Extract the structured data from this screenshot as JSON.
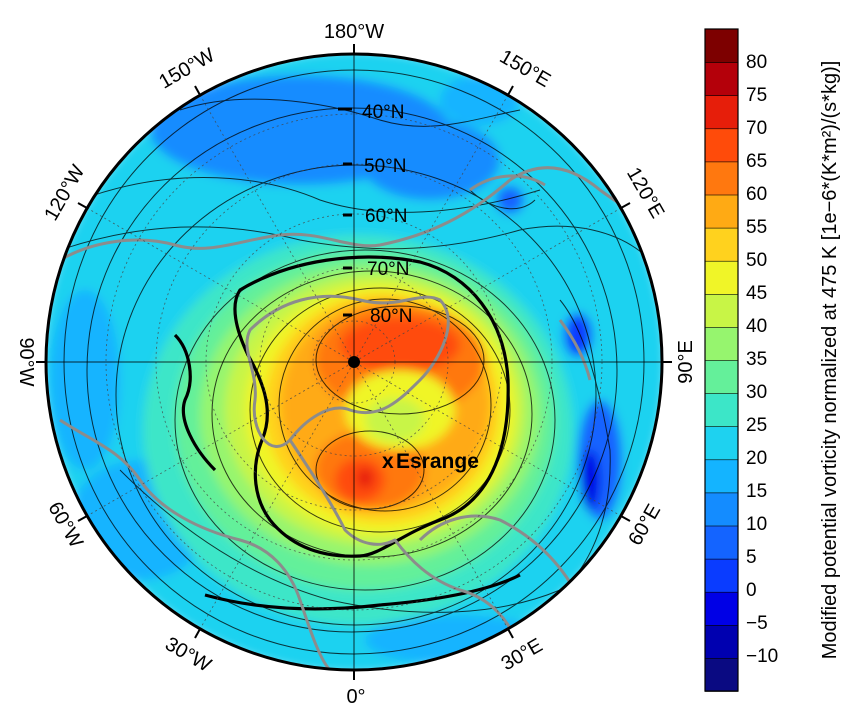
{
  "map": {
    "projection": "north-polar-stereographic",
    "longitude_labels": [
      {
        "id": "lon-180w",
        "text": "180°W"
      },
      {
        "id": "lon-150w",
        "text": "150°W"
      },
      {
        "id": "lon-150e",
        "text": "150°E"
      },
      {
        "id": "lon-120w",
        "text": "120°W"
      },
      {
        "id": "lon-120e",
        "text": "120°E"
      },
      {
        "id": "lon-90w",
        "text": "90°W"
      },
      {
        "id": "lon-90e",
        "text": "90°E"
      },
      {
        "id": "lon-60w",
        "text": "60°W"
      },
      {
        "id": "lon-60e",
        "text": "60°E"
      },
      {
        "id": "lon-30w",
        "text": "30°W"
      },
      {
        "id": "lon-30e",
        "text": "30°E"
      },
      {
        "id": "lon-0",
        "text": "0°"
      }
    ],
    "latitude_labels": [
      "40°N",
      "50°N",
      "60°N",
      "70°N",
      "80°N"
    ],
    "station": {
      "marker": "x",
      "name": "Esrange"
    },
    "continent_outline_color": "#8c8c8c"
  },
  "colorbar": {
    "label": "Modified potential vorticity normalized at 475 K [1e−6*(K*m²)/(s*kg)]",
    "ticks": [
      "80",
      "75",
      "70",
      "65",
      "60",
      "55",
      "50",
      "45",
      "40",
      "35",
      "30",
      "25",
      "20",
      "15",
      "10",
      "5",
      "0",
      "−5",
      "−10"
    ],
    "levels": [
      -15,
      -10,
      -5,
      0,
      5,
      10,
      15,
      20,
      25,
      30,
      35,
      40,
      45,
      50,
      55,
      60,
      65,
      70,
      75,
      80,
      85
    ],
    "colors": [
      "#0a0a82",
      "#0000b0",
      "#0000e6",
      "#0a3cff",
      "#1464ff",
      "#148cff",
      "#14b4ff",
      "#1ed2f0",
      "#3ce6c8",
      "#64f09a",
      "#96f56e",
      "#c8f546",
      "#f0f528",
      "#ffd21e",
      "#ffaa14",
      "#ff780f",
      "#ff4b0a",
      "#e61e0a",
      "#b4000a",
      "#7d0000"
    ]
  }
}
